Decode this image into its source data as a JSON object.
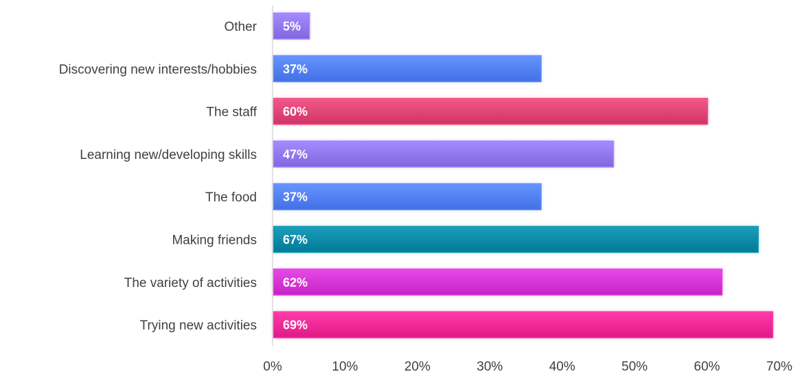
{
  "chart_data": {
    "type": "bar",
    "orientation": "horizontal",
    "title": "",
    "xlabel": "",
    "ylabel": "",
    "categories": [
      "Other",
      "Discovering new interests/hobbies",
      "The staff",
      "Learning new/developing skills",
      "The food",
      "Making friends",
      "The variety of activities",
      "Trying new activities"
    ],
    "values": [
      5,
      37,
      60,
      47,
      37,
      67,
      62,
      69
    ],
    "data_labels": [
      "5%",
      "37%",
      "60%",
      "47%",
      "37%",
      "67%",
      "62%",
      "69%"
    ],
    "xlim": [
      0,
      70
    ],
    "x_ticks": [
      "0%",
      "10%",
      "20%",
      "30%",
      "40%",
      "50%",
      "60%",
      "70%"
    ],
    "grid": false,
    "legend": "none",
    "bar_colors": [
      "#8a6ee6",
      "#4a78ee",
      "#d63c6e",
      "#8a6ee6",
      "#4a78ee",
      "#00829f",
      "#cc2ccc",
      "#e8208e"
    ]
  }
}
